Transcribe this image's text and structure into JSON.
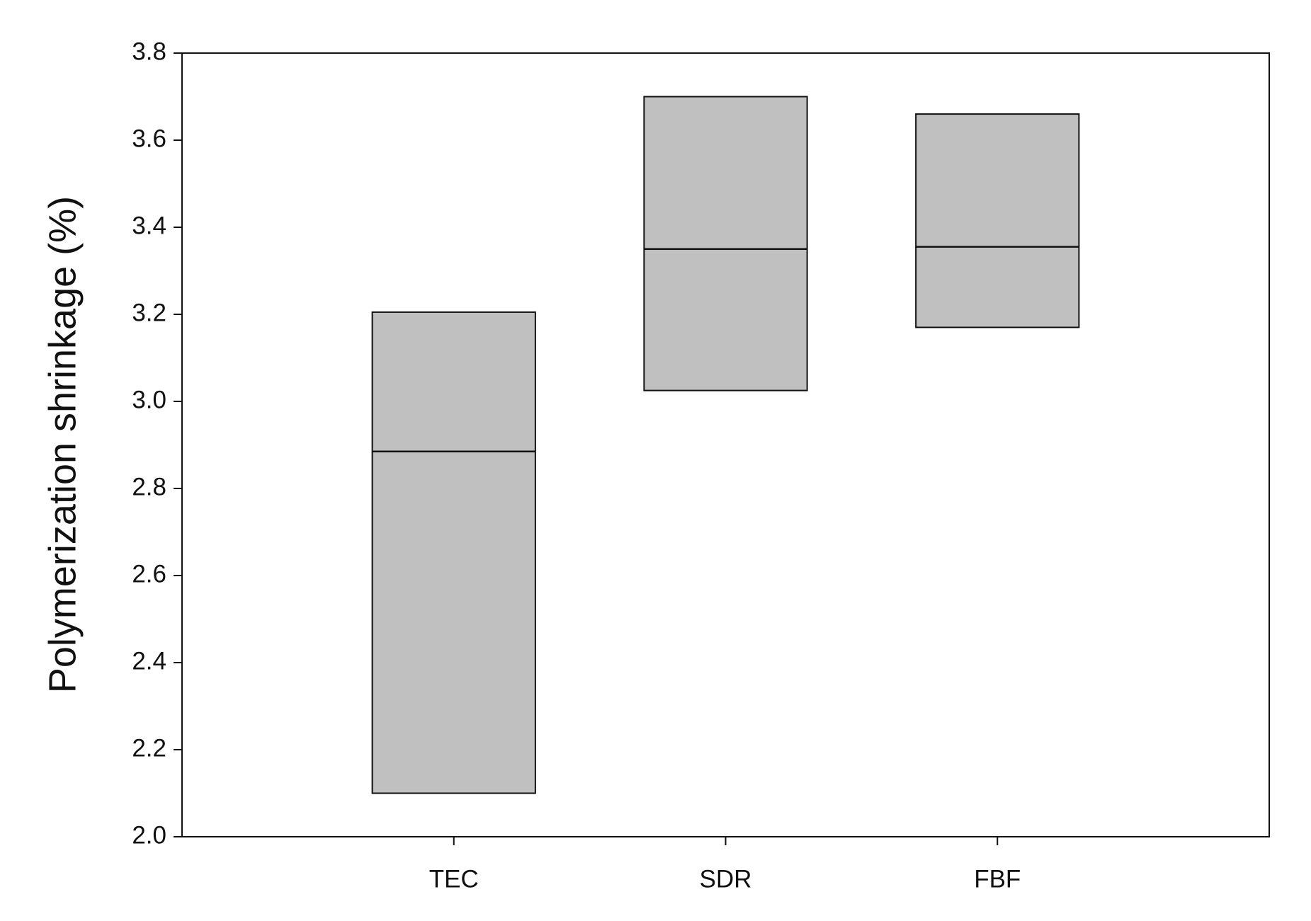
{
  "chart_data": {
    "type": "floating-box",
    "y_label": "Polymerization shrinkage (%)",
    "categories": [
      "TEC",
      "SDR",
      "FBF"
    ],
    "low": [
      2.1,
      3.025,
      3.17
    ],
    "median": [
      2.885,
      3.35,
      3.355
    ],
    "high": [
      3.205,
      3.7,
      3.66
    ],
    "color": "#c0c0c0",
    "ylim": [
      2.0,
      3.8
    ],
    "yticks": [
      {
        "value": 2.0,
        "label": "2.0"
      },
      2.2,
      2.4,
      2.6,
      2.8,
      {
        "value": 3.0,
        "label": "3.0"
      },
      3.2,
      3.4,
      3.6,
      3.8
    ],
    "grid": false
  }
}
